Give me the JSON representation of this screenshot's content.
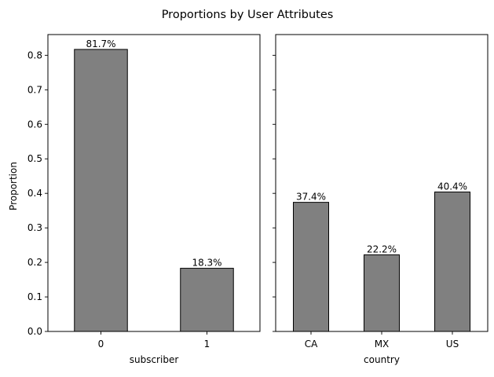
{
  "figure_title": "Proportions by User Attributes",
  "chart_data": [
    {
      "type": "bar",
      "categories": [
        "0",
        "1"
      ],
      "values": [
        0.817,
        0.183
      ],
      "data_labels": [
        "81.7%",
        "18.3%"
      ],
      "xlabel": "subscriber",
      "ylabel": "Proportion",
      "ylim": [
        0,
        0.86
      ],
      "yticks": [
        "0.0",
        "0.1",
        "0.2",
        "0.3",
        "0.4",
        "0.5",
        "0.6",
        "0.7",
        "0.8"
      ],
      "grid": false,
      "bar_color": "#808080",
      "edge_color": "#000000"
    },
    {
      "type": "bar",
      "categories": [
        "CA",
        "MX",
        "US"
      ],
      "values": [
        0.374,
        0.222,
        0.404
      ],
      "data_labels": [
        "37.4%",
        "22.2%",
        "40.4%"
      ],
      "xlabel": "country",
      "ylabel": "",
      "ylim": [
        0,
        0.86
      ],
      "shared_y": true,
      "grid": false,
      "bar_color": "#808080",
      "edge_color": "#000000"
    }
  ]
}
